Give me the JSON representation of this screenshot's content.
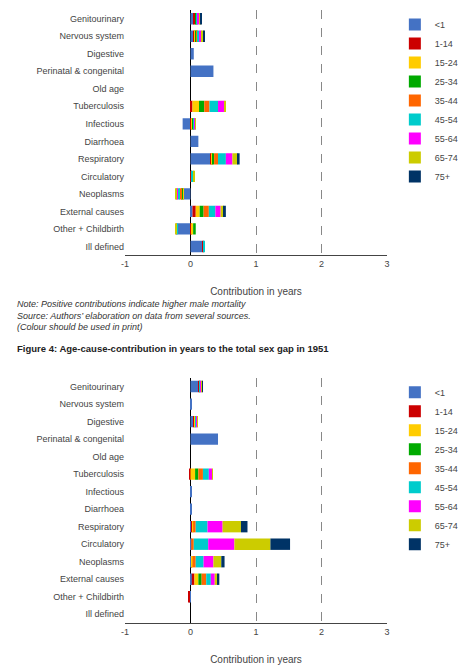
{
  "chart_data": [
    {
      "type": "bar",
      "orientation": "horizontal",
      "stacked": true,
      "grid": true,
      "legend": "upper right",
      "xlabel": "Contribution in years",
      "xlim": [
        -1,
        3
      ],
      "xticks": [
        -1,
        0,
        1,
        2,
        3
      ],
      "annotations": [
        "Note: Positive contributions indicate higher male mortality",
        "Source: Authors’ elaboration on data from several sources.",
        "(Colour should be used in print)"
      ],
      "categories": [
        "Genitourinary",
        "Nervous system",
        "Digestive",
        "Perinatal & congenital",
        "Old age",
        "Tuberculosis",
        "Infectious",
        "Diarrhoea",
        "Respiratory",
        "Circulatory",
        "Neoplasms",
        "External causes",
        "Other + Childbirth",
        "Ill defined"
      ],
      "series": [
        {
          "name": "<1",
          "color": "#4472c4",
          "values": [
            0.05,
            0.04,
            0.05,
            0.35,
            0.0,
            0.0,
            -0.12,
            0.12,
            0.3,
            0.0,
            -0.1,
            0.03,
            -0.2,
            0.18
          ]
        },
        {
          "name": "1-14",
          "color": "#cc0000",
          "values": [
            0.02,
            0.02,
            0.0,
            0.0,
            0.0,
            0.03,
            0.02,
            0.0,
            0.02,
            0.01,
            -0.01,
            0.05,
            0.02,
            0.02
          ]
        },
        {
          "name": "15-24",
          "color": "#ffcc00",
          "values": [
            0.01,
            0.02,
            0.0,
            0.0,
            0.0,
            0.1,
            0.01,
            0.0,
            0.02,
            0.0,
            -0.01,
            0.06,
            0.02,
            0.0
          ]
        },
        {
          "name": "25-34",
          "color": "#00aa00",
          "values": [
            0.01,
            0.01,
            0.0,
            0.0,
            0.0,
            0.08,
            0.01,
            0.0,
            0.02,
            0.0,
            -0.02,
            0.06,
            0.04,
            0.0
          ]
        },
        {
          "name": "35-44",
          "color": "#ff6600",
          "values": [
            0.0,
            0.01,
            0.0,
            0.0,
            0.0,
            0.08,
            0.01,
            0.0,
            0.06,
            0.01,
            -0.03,
            0.08,
            0.0,
            0.0
          ]
        },
        {
          "name": "45-54",
          "color": "#00cccc",
          "values": [
            0.02,
            0.03,
            0.0,
            0.0,
            0.0,
            0.13,
            0.01,
            0.0,
            0.12,
            0.02,
            -0.03,
            0.1,
            -0.01,
            0.01
          ]
        },
        {
          "name": "55-64",
          "color": "#ff00ff",
          "values": [
            0.03,
            0.04,
            0.0,
            0.0,
            0.0,
            0.1,
            0.01,
            0.0,
            0.1,
            0.01,
            -0.02,
            0.08,
            -0.01,
            0.0
          ]
        },
        {
          "name": "65-74",
          "color": "#cccc00",
          "values": [
            0.02,
            0.03,
            0.0,
            0.0,
            0.0,
            0.02,
            0.01,
            0.0,
            0.08,
            0.01,
            -0.01,
            0.05,
            -0.01,
            0.0
          ]
        },
        {
          "name": "75+",
          "color": "#003366",
          "values": [
            0.01,
            0.02,
            0.0,
            0.0,
            0.0,
            0.0,
            0.0,
            0.0,
            0.03,
            0.0,
            0.0,
            0.03,
            0.0,
            0.0
          ]
        }
      ]
    },
    {
      "type": "bar",
      "orientation": "horizontal",
      "stacked": true,
      "grid": true,
      "legend": "upper right",
      "title": "Figure 4: Age-cause-contribution in years to the total sex gap in 1951",
      "xlabel": "Contribution in years",
      "xlim": [
        -1,
        3
      ],
      "xticks": [
        -1,
        0,
        1,
        2,
        3
      ],
      "categories": [
        "Genitourinary",
        "Nervous system",
        "Digestive",
        "Perinatal & congenital",
        "Old age",
        "Tuberculosis",
        "Infectious",
        "Diarrhoea",
        "Respiratory",
        "Circulatory",
        "Neoplasms",
        "External causes",
        "Other + Childbirth",
        "Ill defined"
      ],
      "series": [
        {
          "name": "<1",
          "color": "#4472c4",
          "values": [
            0.12,
            0.01,
            0.05,
            0.42,
            0.0,
            0.0,
            0.01,
            0.02,
            0.02,
            0.01,
            0.01,
            0.02,
            -0.02,
            0.0
          ]
        },
        {
          "name": "1-14",
          "color": "#cc0000",
          "values": [
            0.01,
            0.0,
            0.01,
            0.0,
            0.0,
            -0.02,
            0.0,
            0.0,
            0.01,
            0.0,
            0.01,
            0.04,
            -0.01,
            0.0
          ]
        },
        {
          "name": "15-24",
          "color": "#ffcc00",
          "values": [
            0.0,
            0.0,
            0.01,
            0.0,
            0.0,
            0.07,
            0.0,
            0.0,
            0.01,
            0.0,
            0.01,
            0.06,
            0.0,
            0.0
          ]
        },
        {
          "name": "25-34",
          "color": "#00aa00",
          "values": [
            0.0,
            0.0,
            0.0,
            0.0,
            0.0,
            0.05,
            0.0,
            0.0,
            0.0,
            0.0,
            0.0,
            0.05,
            0.0,
            0.0
          ]
        },
        {
          "name": "35-44",
          "color": "#ff6600",
          "values": [
            0.01,
            0.0,
            0.01,
            0.0,
            0.0,
            0.07,
            0.0,
            0.0,
            0.04,
            0.04,
            0.05,
            0.07,
            0.0,
            0.0
          ]
        },
        {
          "name": "45-54",
          "color": "#00cccc",
          "values": [
            0.01,
            0.0,
            0.01,
            0.0,
            0.0,
            0.09,
            0.0,
            0.0,
            0.18,
            0.22,
            0.12,
            0.07,
            0.0,
            0.0
          ]
        },
        {
          "name": "55-64",
          "color": "#ff00ff",
          "values": [
            0.02,
            0.0,
            0.01,
            0.0,
            0.0,
            0.05,
            0.0,
            0.0,
            0.23,
            0.4,
            0.15,
            0.06,
            0.0,
            0.0
          ]
        },
        {
          "name": "65-74",
          "color": "#cccc00",
          "values": [
            0.01,
            0.0,
            0.01,
            0.0,
            0.0,
            0.01,
            0.0,
            0.0,
            0.28,
            0.55,
            0.12,
            0.04,
            0.0,
            0.0
          ]
        },
        {
          "name": "75+",
          "color": "#003366",
          "values": [
            0.01,
            0.0,
            0.0,
            0.0,
            0.0,
            0.0,
            0.0,
            0.0,
            0.1,
            0.3,
            0.05,
            0.03,
            0.0,
            0.0
          ]
        }
      ]
    }
  ]
}
